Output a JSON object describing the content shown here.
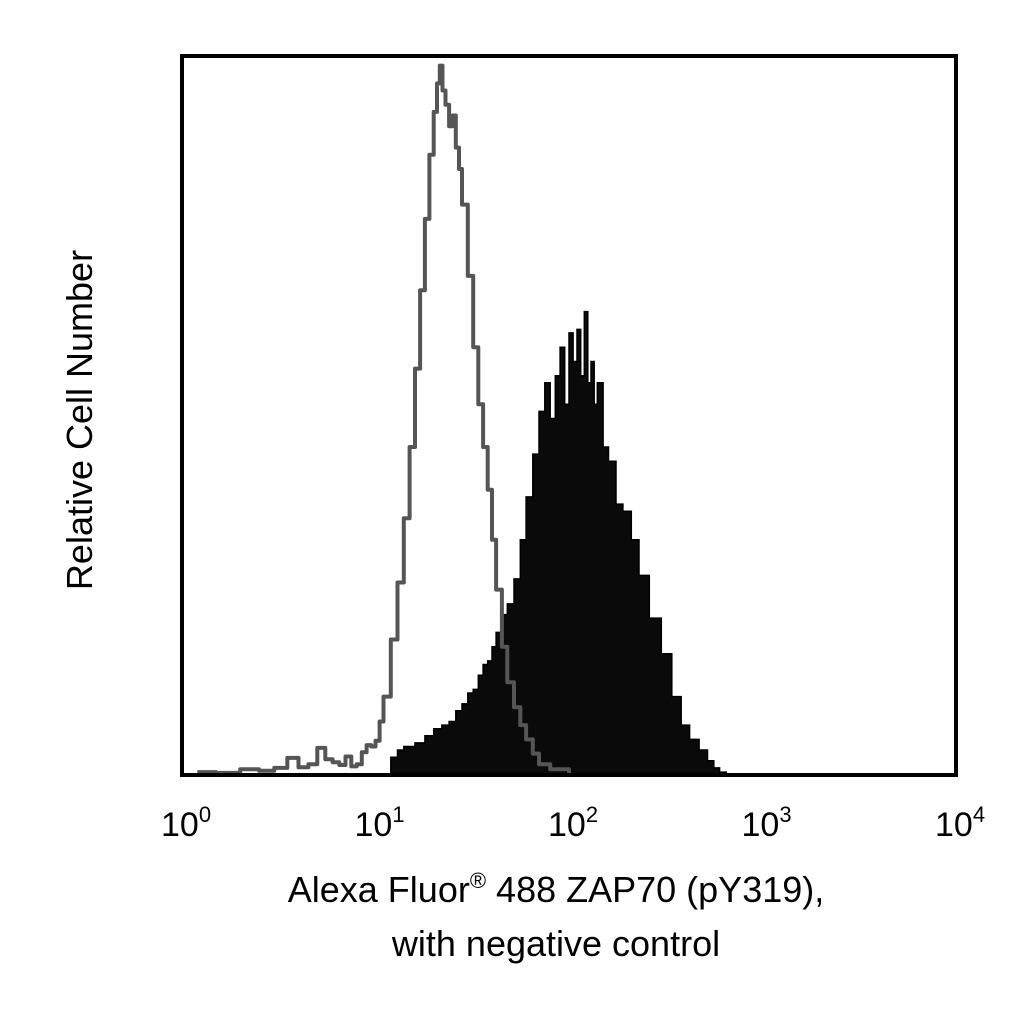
{
  "chart_data": {
    "type": "area",
    "title": "",
    "xlabel_line1_prefix": "Alexa Fluor",
    "xlabel_line1_mark": "®",
    "xlabel_line1_suffix": " 488 ZAP70 (pY319),",
    "xlabel_line2": "with negative control",
    "ylabel": "Relative Cell Number",
    "x_scale": "log",
    "xlim": [
      1,
      10000
    ],
    "ylim": [
      0,
      100
    ],
    "x_ticks": [
      {
        "base": "10",
        "exp": "0",
        "value": 1
      },
      {
        "base": "10",
        "exp": "1",
        "value": 10
      },
      {
        "base": "10",
        "exp": "2",
        "value": 100
      },
      {
        "base": "10",
        "exp": "3",
        "value": 1000
      },
      {
        "base": "10",
        "exp": "4",
        "value": 10000
      }
    ],
    "grid": false,
    "legend": "none",
    "series": [
      {
        "style": "outline",
        "color": "#555555",
        "points": [
          [
            1.2,
            0.4
          ],
          [
            1.5,
            0.3
          ],
          [
            2.0,
            0.8
          ],
          [
            2.5,
            0.6
          ],
          [
            3.0,
            1.0
          ],
          [
            3.5,
            2.4
          ],
          [
            4.0,
            1.1
          ],
          [
            4.5,
            1.5
          ],
          [
            5.0,
            3.8
          ],
          [
            5.5,
            2.2
          ],
          [
            6.0,
            1.8
          ],
          [
            6.5,
            1.4
          ],
          [
            7.0,
            2.6
          ],
          [
            7.5,
            1.2
          ],
          [
            8.0,
            1.5
          ],
          [
            8.5,
            3.2
          ],
          [
            9.0,
            4.2
          ],
          [
            9.5,
            4.0
          ],
          [
            10.0,
            4.8
          ],
          [
            10.5,
            7.5
          ],
          [
            11.0,
            11.0
          ],
          [
            12.0,
            19.0
          ],
          [
            13.0,
            27.0
          ],
          [
            14.0,
            36.0
          ],
          [
            15.0,
            46.0
          ],
          [
            16.0,
            57.0
          ],
          [
            17.0,
            68.0
          ],
          [
            18.0,
            78.0
          ],
          [
            19.0,
            87.0
          ],
          [
            20.0,
            93.0
          ],
          [
            20.8,
            97.0
          ],
          [
            21.5,
            99.5
          ],
          [
            22.2,
            96.0
          ],
          [
            23.0,
            94.0
          ],
          [
            24.0,
            91.0
          ],
          [
            25.0,
            92.5
          ],
          [
            26.0,
            88.0
          ],
          [
            27.0,
            85.0
          ],
          [
            28.0,
            80.0
          ],
          [
            30.0,
            70.0
          ],
          [
            32.0,
            60.0
          ],
          [
            34.0,
            52.0
          ],
          [
            36.0,
            46.0
          ],
          [
            38.0,
            40.0
          ],
          [
            40.0,
            33.0
          ],
          [
            42.0,
            26.0
          ],
          [
            45.0,
            18.0
          ],
          [
            48.0,
            13.0
          ],
          [
            52.0,
            9.5
          ],
          [
            56.0,
            7.0
          ],
          [
            60.0,
            5.0
          ],
          [
            65.0,
            3.0
          ],
          [
            70.0,
            1.5
          ],
          [
            80.0,
            0.8
          ],
          [
            100.0,
            0.0
          ]
        ]
      },
      {
        "style": "filled",
        "color": "#0a0a0a",
        "points": [
          [
            11.0,
            0.0
          ],
          [
            12.0,
            2.5
          ],
          [
            13.0,
            3.5
          ],
          [
            14.0,
            4.0
          ],
          [
            16.0,
            4.5
          ],
          [
            18.0,
            5.5
          ],
          [
            20.0,
            6.5
          ],
          [
            22.0,
            7.0
          ],
          [
            24.0,
            7.5
          ],
          [
            26.0,
            9.0
          ],
          [
            28.0,
            10.0
          ],
          [
            30.0,
            11.5
          ],
          [
            32.0,
            12.0
          ],
          [
            34.0,
            14.0
          ],
          [
            36.0,
            15.5
          ],
          [
            38.0,
            16.0
          ],
          [
            40.0,
            18.0
          ],
          [
            42.0,
            20.0
          ],
          [
            45.0,
            22.5
          ],
          [
            48.0,
            24.0
          ],
          [
            52.0,
            27.5
          ],
          [
            56.0,
            33.0
          ],
          [
            60.0,
            39.0
          ],
          [
            65.0,
            45.0
          ],
          [
            70.0,
            51.0
          ],
          [
            75.0,
            55.0
          ],
          [
            80.0,
            50.0
          ],
          [
            85.0,
            56.0
          ],
          [
            90.0,
            60.0
          ],
          [
            95.0,
            52.0
          ],
          [
            100.0,
            62.0
          ],
          [
            105.0,
            58.0
          ],
          [
            110.0,
            62.5
          ],
          [
            115.0,
            56.0
          ],
          [
            120.0,
            65.0
          ],
          [
            125.0,
            55.0
          ],
          [
            130.0,
            58.0
          ],
          [
            135.0,
            52.0
          ],
          [
            140.0,
            55.0
          ],
          [
            150.0,
            46.0
          ],
          [
            160.0,
            44.0
          ],
          [
            175.0,
            38.0
          ],
          [
            190.0,
            37.0
          ],
          [
            210.0,
            33.0
          ],
          [
            230.0,
            28.0
          ],
          [
            260.0,
            22.0
          ],
          [
            300.0,
            17.0
          ],
          [
            340.0,
            11.0
          ],
          [
            380.0,
            7.0
          ],
          [
            420.0,
            5.0
          ],
          [
            470.0,
            3.5
          ],
          [
            520.0,
            2.0
          ],
          [
            560.0,
            1.0
          ],
          [
            600.0,
            0.4
          ],
          [
            650.0,
            0.0
          ]
        ]
      }
    ]
  }
}
